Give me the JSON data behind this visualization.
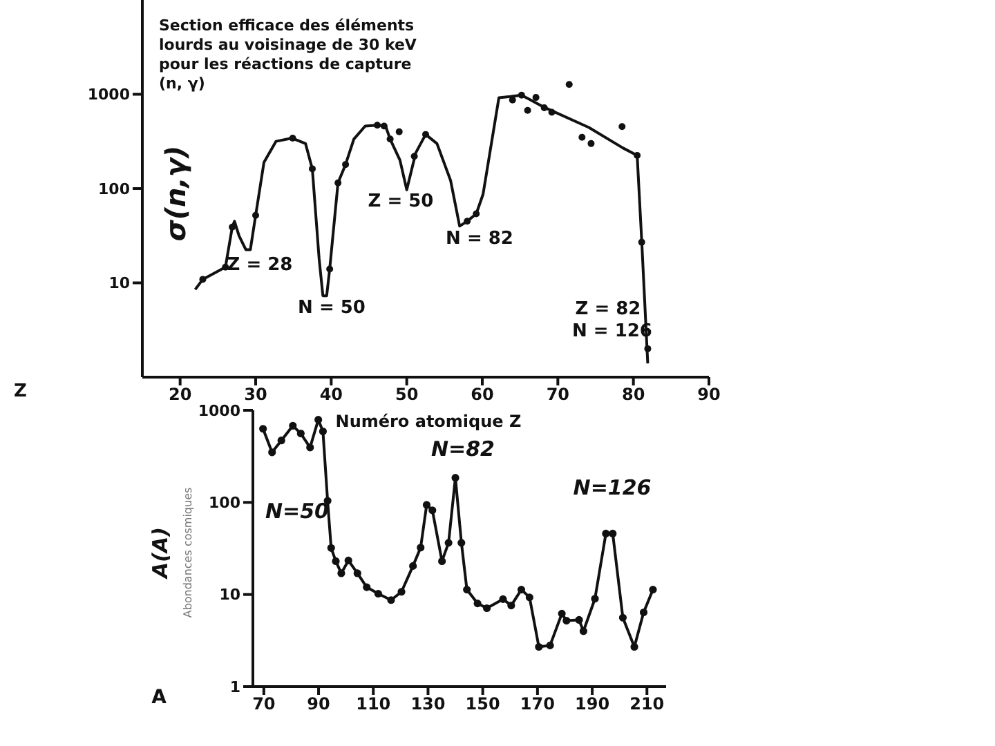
{
  "chart_data": [
    {
      "type": "line",
      "title": "Section efficace des éléments lourds au voisinage de 30 keV pour les réactions de capture (n, γ)",
      "xlabel": "Z",
      "ylabel": "σ(n,γ)",
      "log": "y",
      "xlim": [
        15,
        90
      ],
      "xticks": [
        20,
        30,
        40,
        50,
        60,
        70,
        80,
        90
      ],
      "ylim": [
        1,
        10000
      ],
      "yticks": [
        10,
        100,
        1000
      ],
      "annotations": [
        "Z = 28",
        "N = 50",
        "Z = 50",
        "N = 82",
        "Z = 82",
        "N = 126"
      ],
      "series": [
        {
          "marker": "none",
          "color": "#111111",
          "x": [
            22,
            23,
            26,
            26.9,
            27.2,
            27.8,
            28.7,
            29.3,
            30,
            31.1,
            32.7,
            34.8,
            36.6,
            37.5,
            38.4,
            38.9,
            39.4,
            39.8,
            40.9,
            41.9,
            43,
            44.5,
            46.1,
            47.2,
            47.8,
            49.1,
            50,
            50.6,
            51.2,
            52.5,
            54,
            55.8,
            57,
            58,
            59.2,
            60.1,
            62.2,
            63.7,
            65.2,
            68,
            74.1,
            78.6,
            80.5,
            81.1,
            81.9
          ],
          "values": [
            8.5,
            10.9,
            14.7,
            39,
            45,
            31.6,
            22.5,
            22.5,
            52,
            190,
            317,
            343,
            300,
            162,
            18,
            7.3,
            7.3,
            14,
            115,
            180,
            335,
            460,
            470,
            460,
            335,
            200,
            97,
            153,
            240,
            375,
            300,
            122,
            40,
            45,
            54,
            87,
            920,
            945,
            980,
            740,
            445,
            270,
            225,
            28,
            1.4
          ]
        },
        {
          "type": "scatter",
          "marker": "circle",
          "color": "#111111",
          "x": [
            23,
            26,
            26.9,
            30,
            34.9,
            37.5,
            39.8,
            40.9,
            41.9,
            46.1,
            47,
            47.8,
            49,
            51,
            52.5,
            58,
            59.2,
            64,
            65.2,
            66,
            67.1,
            68.2,
            69.2,
            71.5,
            73.2,
            74.4,
            78.5,
            80.5,
            81.1,
            81.9
          ],
          "values": [
            10.9,
            14.7,
            39,
            52,
            343,
            162,
            14,
            115,
            180,
            470,
            460,
            335,
            400,
            220,
            375,
            45,
            54,
            870,
            980,
            675,
            925,
            720,
            645,
            1270,
            350,
            300,
            455,
            225,
            27,
            2
          ]
        }
      ]
    },
    {
      "type": "line",
      "title": "Numéro atomique Z",
      "ylabel": "A(A)",
      "log": "y",
      "xlim": [
        66,
        217
      ],
      "xticks": [
        70,
        90,
        110,
        130,
        150,
        170,
        190,
        210
      ],
      "ylim": [
        1,
        1000
      ],
      "yticks": [
        1,
        10,
        100,
        1000
      ],
      "annotations": [
        "N=82",
        "N=126",
        "N=50",
        "Abondances cosmiques",
        "A"
      ],
      "series": [
        {
          "marker": "circle",
          "color": "#111111",
          "x": [
            69.7,
            73,
            76.4,
            80.6,
            83.5,
            86.9,
            89.9,
            91.6,
            93.3,
            94.6,
            96.3,
            98.3,
            100.9,
            104.2,
            107.6,
            111.8,
            116.5,
            120.3,
            124.5,
            127.3,
            129.5,
            131.6,
            135.1,
            137.5,
            140,
            142.2,
            144.2,
            148.1,
            151.5,
            157.4,
            160.4,
            164.1,
            167.1,
            170.5,
            174.6,
            178.9,
            180.6,
            185.2,
            186.8,
            191,
            195,
            197.5,
            201.2,
            205.4,
            208.8,
            212.2
          ],
          "values": [
            630,
            350,
            470,
            680,
            560,
            395,
            790,
            590,
            104,
            32,
            23,
            17,
            23.4,
            17,
            12,
            10.2,
            8.7,
            10.7,
            20.4,
            32.3,
            94,
            82,
            23,
            36.4,
            185,
            36.4,
            11.3,
            8,
            7.1,
            8.9,
            7.6,
            11.3,
            9.3,
            2.7,
            2.8,
            6.2,
            5.2,
            5.3,
            4,
            9,
            45.9,
            45.9,
            5.6,
            2.7,
            6.4,
            11.3
          ]
        }
      ]
    }
  ]
}
